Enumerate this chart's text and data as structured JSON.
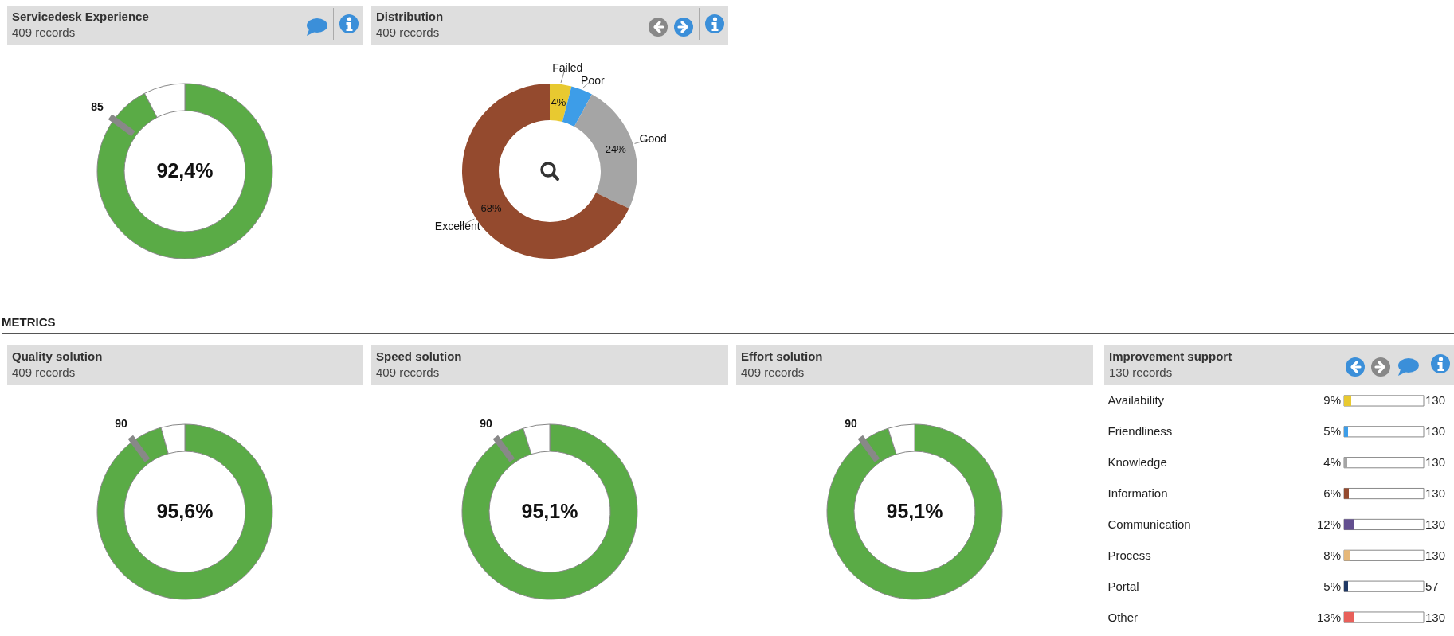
{
  "chart_data": [
    {
      "type": "donut",
      "title": "Servicedesk Experience",
      "subtitle": "409 records",
      "categories": [
        null,
        null
      ],
      "values": [
        92.4,
        7.6
      ],
      "colors": [
        "#5aab46",
        "#ffffff"
      ],
      "annotations": [
        "85",
        "92,4%"
      ]
    },
    {
      "type": "donut",
      "title": "Distribution",
      "subtitle": "409 records",
      "categories": [
        "Failed",
        "Poor",
        "Good",
        "Excellent"
      ],
      "values": [
        4,
        4,
        24,
        68
      ],
      "colors": [
        "#e8c930",
        "#3d9de8",
        "#a5a5a5",
        "#944a2e"
      ],
      "value_labels": [
        "4%",
        null,
        "24%",
        "68%"
      ]
    },
    {
      "type": "other",
      "title": "METRICS"
    },
    {
      "type": "donut",
      "title": "Quality solution",
      "subtitle": "409 records",
      "categories": [
        null,
        null
      ],
      "values": [
        95.6,
        4.4
      ],
      "colors": [
        "#5aab46",
        "#ffffff"
      ],
      "annotations": [
        "90",
        "95,6%"
      ]
    },
    {
      "type": "donut",
      "title": "Speed solution",
      "subtitle": "409 records",
      "categories": [
        null,
        null
      ],
      "values": [
        95.1,
        4.9
      ],
      "colors": [
        "#5aab46",
        "#ffffff"
      ],
      "annotations": [
        "90",
        "95,1%"
      ]
    },
    {
      "type": "donut",
      "title": "Effort solution",
      "subtitle": "409 records",
      "categories": [
        null,
        null
      ],
      "values": [
        95.1,
        4.9
      ],
      "colors": [
        "#5aab46",
        "#ffffff"
      ],
      "annotations": [
        "90",
        "95,1%"
      ]
    },
    {
      "type": "bar",
      "orientation": "horizontal",
      "title": "Improvement support",
      "subtitle": "130 records",
      "categories": [
        "Availability",
        "Friendliness",
        "Knowledge",
        "Information",
        "Communication",
        "Process",
        "Portal",
        "Other"
      ],
      "values": [
        9,
        5,
        4,
        6,
        12,
        8,
        5,
        13
      ],
      "colors": [
        "#e8c930",
        "#3d9de8",
        "#a5a5a5",
        "#944a2e",
        "#634f8f",
        "#e6b87a",
        "#1f3864",
        "#e8605a"
      ],
      "value_labels": [
        "9%",
        "5%",
        "4%",
        "6%",
        "12%",
        "8%",
        "5%",
        "13%"
      ],
      "xlim": [
        0,
        100
      ],
      "tick_labels": "y",
      "annotations": [
        "130",
        "130",
        "130",
        "130",
        "130",
        "130",
        "57",
        "130"
      ]
    }
  ]
}
